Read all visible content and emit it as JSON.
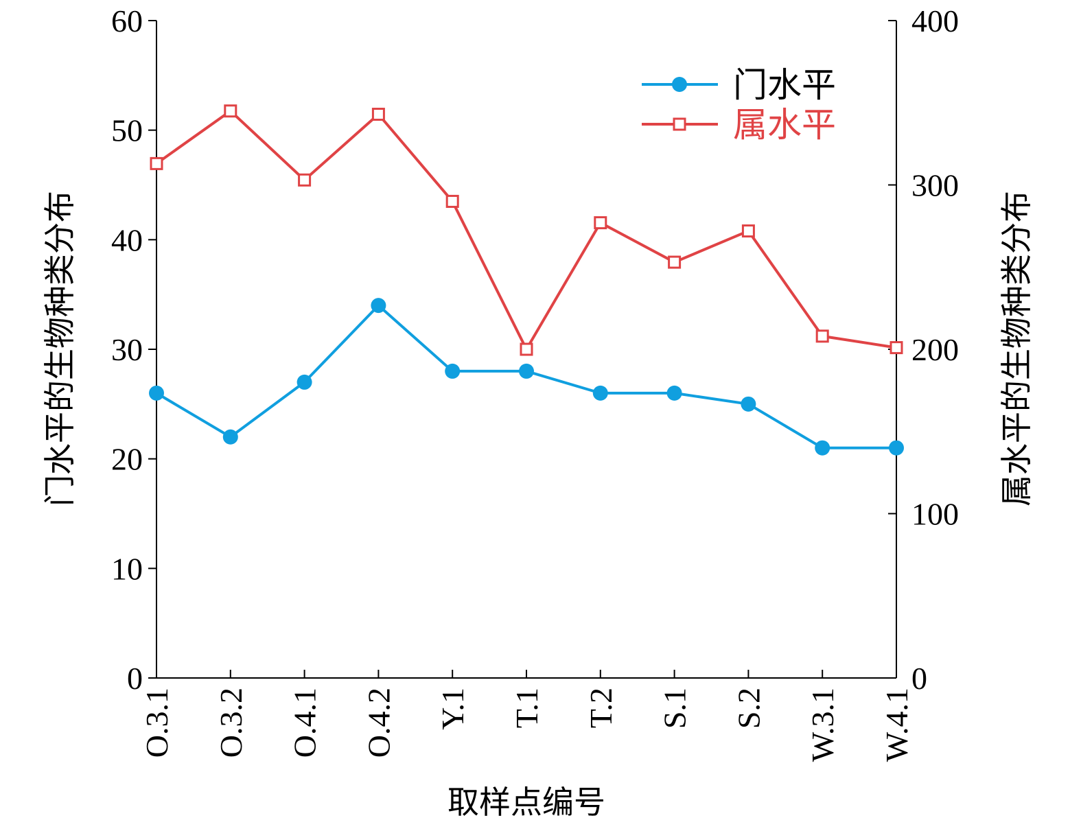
{
  "chart_data": {
    "type": "line",
    "categories": [
      "O.3.1",
      "O.3.2",
      "O.4.1",
      "O.4.2",
      "Y.1",
      "T.1",
      "T.2",
      "S.1",
      "S.2",
      "W.3.1",
      "W.4.1"
    ],
    "xlabel": "取样点编号",
    "ylabel_left": "门水平的生物种类分布",
    "ylabel_right": "属水平的生物种类分布",
    "ylim_left": [
      0,
      60
    ],
    "ylim_right": [
      0,
      400
    ],
    "yticks_left": [
      "0",
      "10",
      "20",
      "30",
      "40",
      "50",
      "60"
    ],
    "yticks_right": [
      "0",
      "100",
      "200",
      "300",
      "400"
    ],
    "grid": false,
    "legend_position": "top-right",
    "series": [
      {
        "name": "门水平",
        "axis": "left",
        "color": "#109FDF",
        "marker": "filled-circle",
        "values": [
          26,
          22,
          27,
          34,
          28,
          28,
          26,
          26,
          25,
          21,
          21
        ]
      },
      {
        "name": "属水平",
        "axis": "right",
        "color": "#E04345",
        "marker": "open-square",
        "values": [
          313,
          345,
          303,
          343,
          290,
          200,
          277,
          253,
          272,
          208,
          201
        ]
      }
    ]
  }
}
